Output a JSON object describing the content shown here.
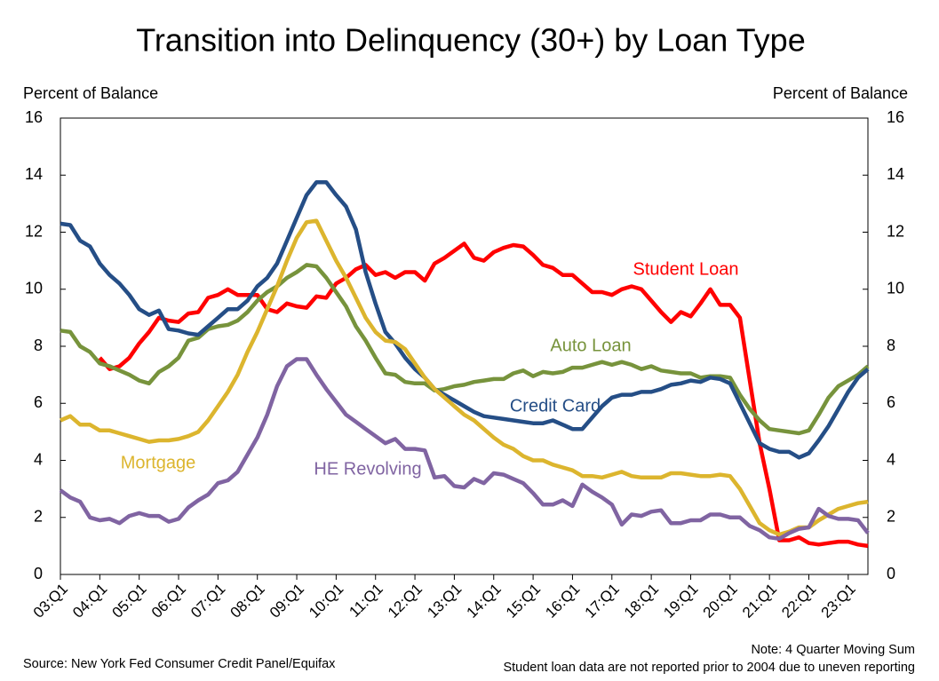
{
  "chart_data": {
    "type": "line",
    "title": "Transition into Delinquency (30+) by Loan Type",
    "ylabel": "Percent of Balance",
    "y2label": "Percent of Balance",
    "categories": [
      "03:Q1",
      null,
      null,
      null,
      "04:Q1",
      null,
      null,
      null,
      "05:Q1",
      null,
      null,
      null,
      "06:Q1",
      null,
      null,
      null,
      "07:Q1",
      null,
      null,
      null,
      "08:Q1",
      null,
      null,
      null,
      "09:Q1",
      null,
      null,
      null,
      "10:Q1",
      null,
      null,
      null,
      "11:Q1",
      null,
      null,
      null,
      "12:Q1",
      null,
      null,
      null,
      "13:Q1",
      null,
      null,
      null,
      "14:Q1",
      null,
      null,
      null,
      "15:Q1",
      null,
      null,
      null,
      "16:Q1",
      null,
      null,
      null,
      "17:Q1",
      null,
      null,
      null,
      "18:Q1",
      null,
      null,
      null,
      "19:Q1",
      null,
      null,
      null,
      "20:Q1",
      null,
      null,
      null,
      "21:Q1",
      null,
      null,
      null,
      "22:Q1",
      null,
      null,
      null,
      "23:Q1",
      null,
      null
    ],
    "series": [
      {
        "name": "Student Loan",
        "color": "#ff0000",
        "values": [
          null,
          null,
          null,
          null,
          7.6,
          7.2,
          7.3,
          7.6,
          8.1,
          8.5,
          9.0,
          8.9,
          8.85,
          9.15,
          9.2,
          9.7,
          9.8,
          10.0,
          9.8,
          9.8,
          9.8,
          9.3,
          9.2,
          9.5,
          9.4,
          9.35,
          9.75,
          9.7,
          10.2,
          10.4,
          10.7,
          10.85,
          10.5,
          10.6,
          10.4,
          10.6,
          10.6,
          10.3,
          10.9,
          11.1,
          11.35,
          11.6,
          11.1,
          11.0,
          11.3,
          11.45,
          11.55,
          11.5,
          11.2,
          10.85,
          10.75,
          10.5,
          10.5,
          10.2,
          9.9,
          9.9,
          9.8,
          10.0,
          10.1,
          10.0,
          9.6,
          9.2,
          8.85,
          9.2,
          9.05,
          9.5,
          10.0,
          9.45,
          9.45,
          9.0,
          6.8,
          4.6,
          3.0,
          1.2,
          1.2,
          1.3,
          1.1,
          1.05,
          1.1,
          1.15,
          1.15,
          1.05,
          1.0
        ]
      },
      {
        "name": "Auto Loan",
        "color": "#77933c",
        "values": [
          8.55,
          8.5,
          8.0,
          7.8,
          7.4,
          7.3,
          7.15,
          7.0,
          6.8,
          6.7,
          7.1,
          7.3,
          7.6,
          8.2,
          8.3,
          8.6,
          8.7,
          8.75,
          8.9,
          9.2,
          9.6,
          9.9,
          10.1,
          10.4,
          10.6,
          10.85,
          10.8,
          10.4,
          9.9,
          9.4,
          8.7,
          8.2,
          7.6,
          7.05,
          7.0,
          6.75,
          6.7,
          6.7,
          6.45,
          6.5,
          6.6,
          6.65,
          6.75,
          6.8,
          6.85,
          6.85,
          7.05,
          7.15,
          6.95,
          7.1,
          7.05,
          7.1,
          7.25,
          7.25,
          7.35,
          7.45,
          7.35,
          7.45,
          7.35,
          7.2,
          7.3,
          7.15,
          7.1,
          7.05,
          7.05,
          6.9,
          6.95,
          6.95,
          6.9,
          6.3,
          5.8,
          5.4,
          5.1,
          5.05,
          5.0,
          4.95,
          5.05,
          5.6,
          6.2,
          6.6,
          6.8,
          7.0,
          7.3
        ]
      },
      {
        "name": "Credit Card",
        "color": "#254e86",
        "values": [
          12.3,
          12.25,
          11.7,
          11.5,
          10.9,
          10.5,
          10.2,
          9.8,
          9.3,
          9.1,
          9.25,
          8.6,
          8.55,
          8.45,
          8.4,
          8.7,
          9.0,
          9.3,
          9.3,
          9.6,
          10.1,
          10.4,
          10.9,
          11.7,
          12.5,
          13.3,
          13.75,
          13.75,
          13.3,
          12.9,
          12.1,
          10.6,
          9.5,
          8.5,
          8.1,
          7.6,
          7.2,
          6.9,
          6.5,
          6.3,
          6.1,
          5.9,
          5.7,
          5.55,
          5.5,
          5.45,
          5.4,
          5.35,
          5.3,
          5.3,
          5.4,
          5.25,
          5.1,
          5.1,
          5.5,
          5.9,
          6.2,
          6.3,
          6.3,
          6.4,
          6.4,
          6.5,
          6.65,
          6.7,
          6.8,
          6.75,
          6.9,
          6.85,
          6.7,
          6.0,
          5.3,
          4.6,
          4.4,
          4.3,
          4.3,
          4.1,
          4.25,
          4.7,
          5.2,
          5.8,
          6.4,
          6.9,
          7.2
        ]
      },
      {
        "name": "Mortgage",
        "color": "#dcb52e",
        "values": [
          5.4,
          5.55,
          5.25,
          5.25,
          5.05,
          5.05,
          4.95,
          4.85,
          4.75,
          4.65,
          4.7,
          4.7,
          4.75,
          4.85,
          5.0,
          5.4,
          5.9,
          6.4,
          7.0,
          7.8,
          8.5,
          9.3,
          10.1,
          11.0,
          11.8,
          12.35,
          12.4,
          11.7,
          11.0,
          10.4,
          9.7,
          9.0,
          8.5,
          8.2,
          8.15,
          7.9,
          7.4,
          6.9,
          6.5,
          6.2,
          5.9,
          5.6,
          5.4,
          5.1,
          4.8,
          4.55,
          4.4,
          4.15,
          4.0,
          4.0,
          3.85,
          3.75,
          3.65,
          3.45,
          3.45,
          3.4,
          3.5,
          3.6,
          3.45,
          3.4,
          3.4,
          3.4,
          3.55,
          3.55,
          3.5,
          3.45,
          3.45,
          3.5,
          3.45,
          3.0,
          2.4,
          1.8,
          1.55,
          1.4,
          1.5,
          1.65,
          1.65,
          1.9,
          2.1,
          2.3,
          2.4,
          2.5,
          2.55
        ]
      },
      {
        "name": "HE Revolving",
        "color": "#8064a2",
        "values": [
          2.95,
          2.7,
          2.55,
          2.0,
          1.9,
          1.95,
          1.8,
          2.05,
          2.15,
          2.05,
          2.05,
          1.85,
          1.95,
          2.35,
          2.6,
          2.8,
          3.2,
          3.3,
          3.6,
          4.2,
          4.8,
          5.6,
          6.6,
          7.3,
          7.55,
          7.55,
          7.0,
          6.5,
          6.05,
          5.6,
          5.35,
          5.1,
          4.85,
          4.6,
          4.75,
          4.4,
          4.4,
          4.35,
          3.4,
          3.45,
          3.1,
          3.05,
          3.35,
          3.2,
          3.55,
          3.5,
          3.35,
          3.2,
          2.85,
          2.45,
          2.45,
          2.6,
          2.4,
          3.15,
          2.9,
          2.7,
          2.45,
          1.75,
          2.1,
          2.05,
          2.2,
          2.25,
          1.8,
          1.8,
          1.9,
          1.9,
          2.1,
          2.1,
          2.0,
          2.0,
          1.7,
          1.55,
          1.3,
          1.25,
          1.45,
          1.6,
          1.65,
          2.3,
          2.05,
          1.95,
          1.95,
          1.9,
          1.45
        ]
      }
    ],
    "ylim": [
      0,
      16
    ],
    "yticks": [
      0,
      2,
      4,
      6,
      8,
      10,
      12,
      14,
      16
    ],
    "y2lim": [
      0,
      16
    ],
    "y2ticks": [
      0,
      2,
      4,
      6,
      8,
      10,
      12,
      14,
      16
    ],
    "source": "Source: New York Fed Consumer Credit Panel/Equifax",
    "notes": [
      "Note: 4 Quarter Moving Sum",
      "Student loan data are not reported prior to 2004 due to uneven reporting"
    ]
  }
}
